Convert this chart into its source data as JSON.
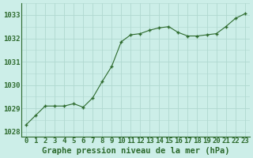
{
  "x": [
    0,
    1,
    2,
    3,
    4,
    5,
    6,
    7,
    8,
    9,
    10,
    11,
    12,
    13,
    14,
    15,
    16,
    17,
    18,
    19,
    20,
    21,
    22,
    23
  ],
  "y": [
    1028.3,
    1028.7,
    1029.1,
    1029.1,
    1029.1,
    1029.2,
    1029.05,
    1029.45,
    1030.15,
    1030.8,
    1031.85,
    1032.15,
    1032.2,
    1032.35,
    1032.45,
    1032.5,
    1032.25,
    1032.1,
    1032.1,
    1032.15,
    1032.2,
    1032.5,
    1032.85,
    1033.05
  ],
  "line_color": "#2d6a2d",
  "marker_color": "#2d6a2d",
  "bg_color": "#cceee8",
  "grid_color": "#b0d8d0",
  "title": "Graphe pression niveau de la mer (hPa)",
  "title_color": "#2d6a2d",
  "ylim": [
    1027.8,
    1033.5
  ],
  "yticks": [
    1028,
    1029,
    1030,
    1031,
    1032,
    1033
  ],
  "xticks": [
    0,
    1,
    2,
    3,
    4,
    5,
    6,
    7,
    8,
    9,
    10,
    11,
    12,
    13,
    14,
    15,
    16,
    17,
    18,
    19,
    20,
    21,
    22,
    23
  ],
  "title_fontsize": 7.5,
  "tick_fontsize": 6.5,
  "tick_color": "#2d6a2d"
}
